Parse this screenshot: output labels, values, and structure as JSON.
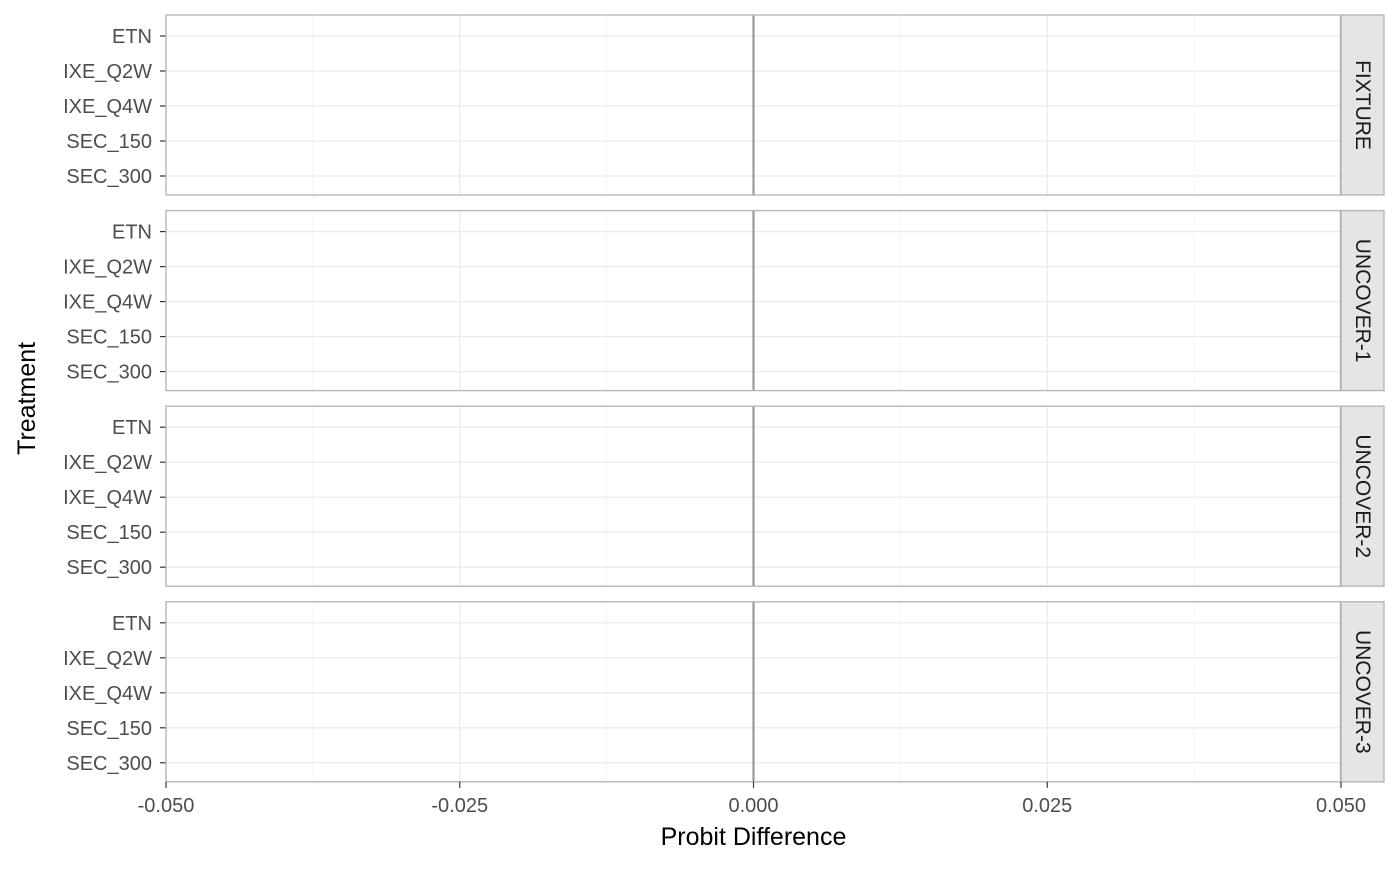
{
  "chart_data": {
    "type": "scatter",
    "facet_by": "study",
    "facets": [
      "FIXTURE",
      "UNCOVER-1",
      "UNCOVER-2",
      "UNCOVER-3"
    ],
    "categories": [
      "ETN",
      "IXE_Q2W",
      "IXE_Q4W",
      "SEC_150",
      "SEC_300"
    ],
    "xlabel": "Probit Difference",
    "ylabel": "Treatment",
    "xlim": [
      -0.05,
      0.05
    ],
    "xticks": [
      -0.05,
      -0.025,
      0.0,
      0.025,
      0.05
    ],
    "xtick_labels": [
      "-0.050",
      "-0.025",
      "0.000",
      "0.025",
      "0.050"
    ],
    "reference_lines": [
      0.0,
      0.05
    ],
    "series": [],
    "grid": true,
    "legend": "none",
    "colors": {
      "panel_border": "#b3b3b3",
      "grid_major": "#ebebeb",
      "grid_minor": "#f5f5f5",
      "reference_line": "#999999",
      "strip_fill": "#e5e5e5"
    }
  }
}
